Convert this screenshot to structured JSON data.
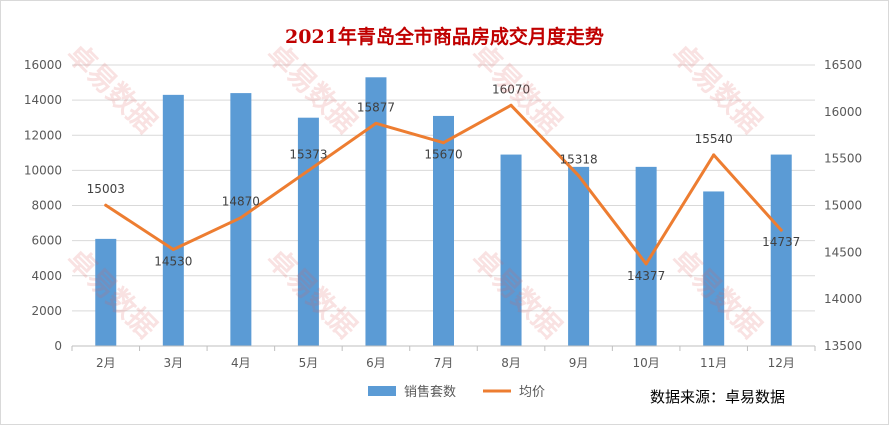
{
  "chart_data": {
    "type": "bar",
    "title": "2021年青岛全市商品房成交月度走势",
    "categories": [
      "2月",
      "3月",
      "4月",
      "5月",
      "6月",
      "7月",
      "8月",
      "9月",
      "10月",
      "11月",
      "12月"
    ],
    "series": [
      {
        "name": "销售套数",
        "type": "bar",
        "axis": "left",
        "color": "#5b9bd5",
        "values": [
          6100,
          14300,
          14400,
          13000,
          15300,
          13100,
          10900,
          10200,
          10200,
          8800,
          10900
        ]
      },
      {
        "name": "均价",
        "type": "line",
        "axis": "right",
        "color": "#ed7d31",
        "values": [
          15003,
          14530,
          14870,
          15373,
          15877,
          15670,
          16070,
          15318,
          14377,
          15540,
          14737
        ],
        "labels": [
          "15003",
          "14530",
          "14870",
          "15373",
          "15877",
          "15670",
          "16070",
          "15318",
          "14377",
          "15540",
          "14737"
        ]
      }
    ],
    "y_left": {
      "min": 0,
      "max": 16000,
      "ticks": [
        "0",
        "2000",
        "4000",
        "6000",
        "8000",
        "10000",
        "12000",
        "14000",
        "16000"
      ]
    },
    "y_right": {
      "min": 13500,
      "max": 16500,
      "ticks": [
        "13500",
        "14000",
        "14500",
        "15000",
        "15500",
        "16000",
        "16500"
      ]
    },
    "grid": true,
    "legend_position": "bottom"
  },
  "watermark_text": "卓易数据",
  "source_note": "数据来源：卓易数据"
}
